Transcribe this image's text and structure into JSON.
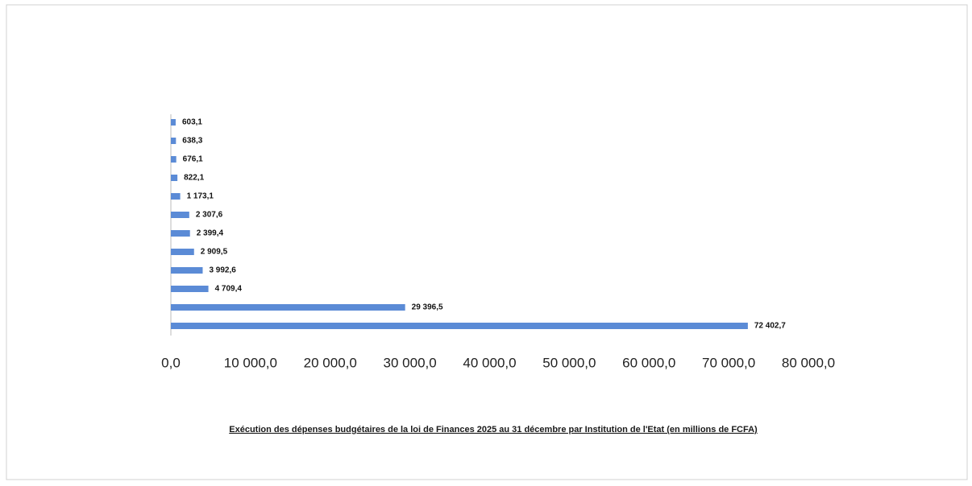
{
  "chart_data": {
    "type": "bar",
    "orientation": "horizontal",
    "title": "Exécution des dépenses budgétaires de la loi de Finances 2025 au 31 décembre par Institution de l'Etat (en millions de FCFA)",
    "categories": [
      null,
      null,
      null,
      null,
      null,
      null,
      null,
      null,
      null,
      null,
      null,
      null
    ],
    "values": [
      603.1,
      638.3,
      676.1,
      822.1,
      1173.1,
      2307.6,
      2399.4,
      2909.5,
      3992.6,
      4709.4,
      29396.5,
      72402.7
    ],
    "value_labels": [
      "603,1",
      "638,3",
      "676,1",
      "822,1",
      "1 173,1",
      "2 307,6",
      "2 399,4",
      "2 909,5",
      "3 992,6",
      "4 709,4",
      "29 396,5",
      "72 402,7"
    ],
    "color": "#5b8bd6",
    "xlim": [
      0,
      80000
    ],
    "xticks": [
      {
        "value": 0,
        "label": "0,0"
      },
      {
        "value": 10000,
        "label": "10 000,0"
      },
      {
        "value": 20000,
        "label": "20 000,0"
      },
      {
        "value": 30000,
        "label": "30 000,0"
      },
      {
        "value": 40000,
        "label": "40 000,0"
      },
      {
        "value": 50000,
        "label": "50 000,0"
      },
      {
        "value": 60000,
        "label": "60 000,0"
      },
      {
        "value": 70000,
        "label": "70 000,0"
      },
      {
        "value": 80000,
        "label": "80 000,0"
      }
    ],
    "grid": false
  }
}
